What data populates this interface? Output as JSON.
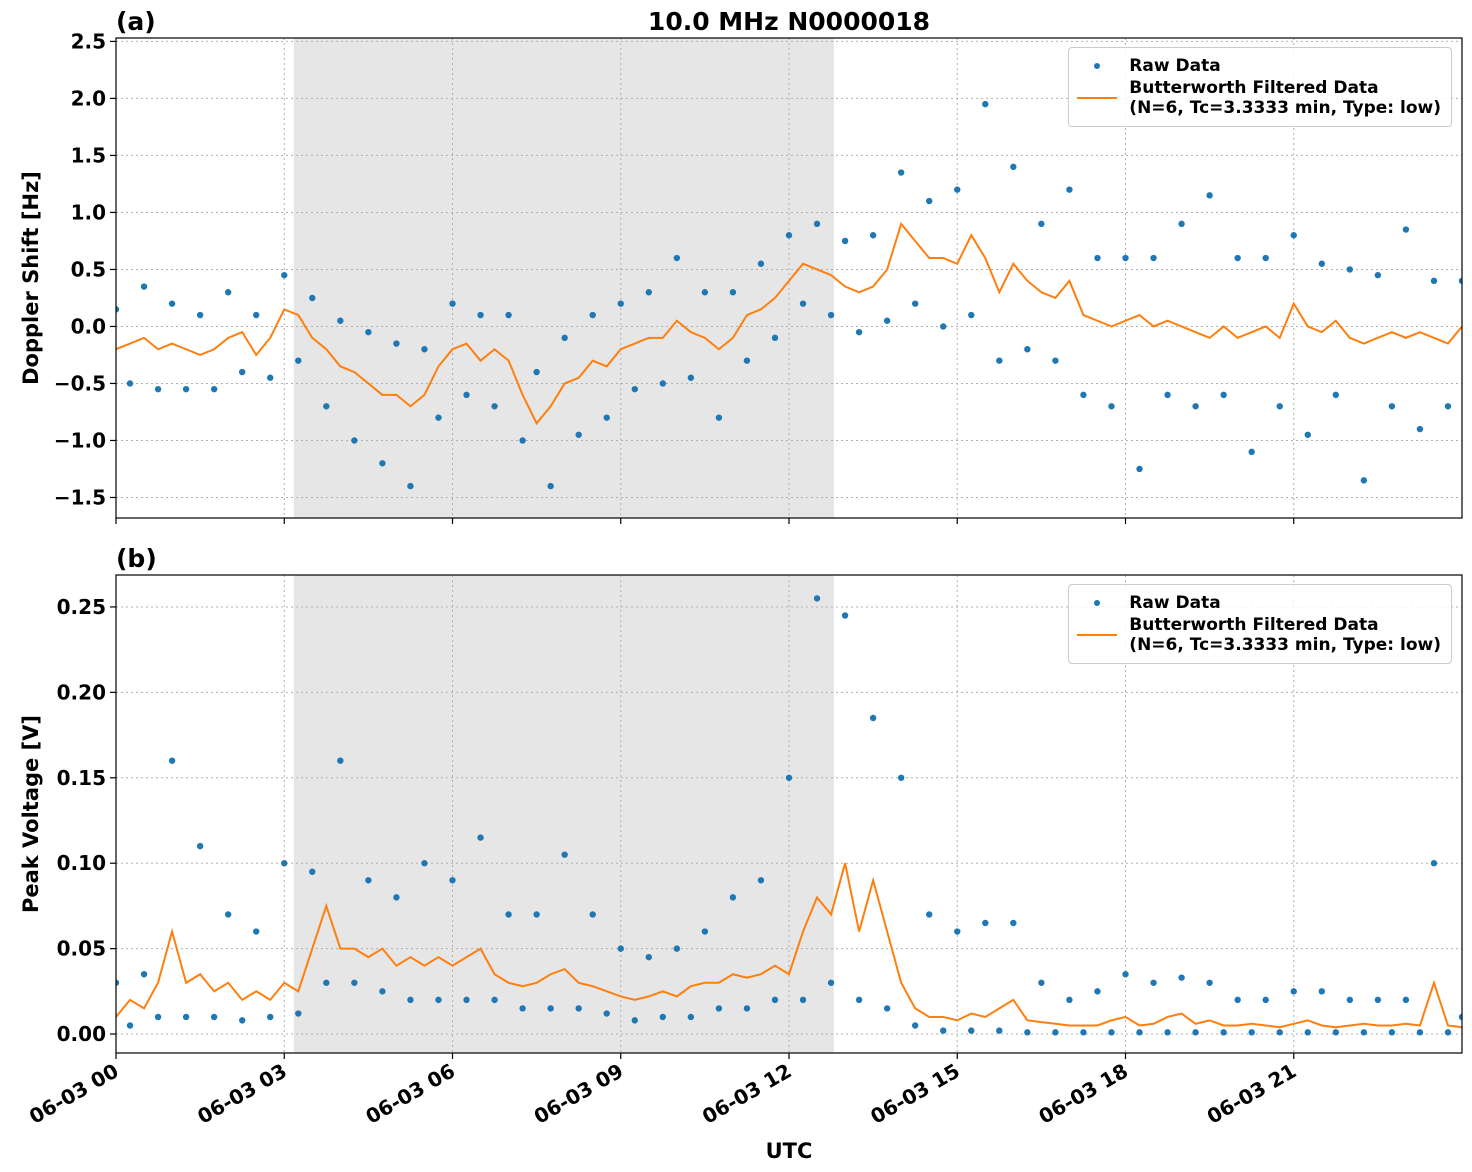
{
  "chart_data": [
    {
      "type": "timeseries",
      "title": "10.0 MHz N0000018",
      "panel_label": "(a)",
      "y_label": "Doppler Shift [Hz]",
      "xlim": [
        0,
        24
      ],
      "shaded_span": [
        3.17,
        12.8
      ],
      "grid": true,
      "legend": "upper right",
      "ylim": [
        -1.68,
        2.53
      ],
      "yticks": [
        {
          "value": -1.5,
          "label": "−1.5"
        },
        {
          "value": -1.0,
          "label": "−1.0"
        },
        {
          "value": -0.5,
          "label": "−0.5"
        },
        {
          "value": 0,
          "label": "0.0"
        },
        0.5,
        {
          "value": 1,
          "label": "1.0"
        },
        1.5,
        {
          "value": 2,
          "label": "2.0"
        },
        2.5
      ],
      "x": [
        0,
        0.25,
        0.5,
        0.75,
        1,
        1.25,
        1.5,
        1.75,
        2,
        2.25,
        2.5,
        2.75,
        3,
        3.25,
        3.5,
        3.75,
        4,
        4.25,
        4.5,
        4.75,
        5,
        5.25,
        5.5,
        5.75,
        6,
        6.25,
        6.5,
        6.75,
        7,
        7.25,
        7.5,
        7.75,
        8,
        8.25,
        8.5,
        8.75,
        9,
        9.25,
        9.5,
        9.75,
        10,
        10.25,
        10.5,
        10.75,
        11,
        11.25,
        11.5,
        11.75,
        12,
        12.25,
        12.5,
        12.75,
        13,
        13.25,
        13.5,
        13.75,
        14,
        14.25,
        14.5,
        14.75,
        15,
        15.25,
        15.5,
        15.75,
        16,
        16.25,
        16.5,
        16.75,
        17,
        17.25,
        17.5,
        17.75,
        18,
        18.25,
        18.5,
        18.75,
        19,
        19.25,
        19.5,
        19.75,
        20,
        20.25,
        20.5,
        20.75,
        21,
        21.25,
        21.5,
        21.75,
        22,
        22.25,
        22.5,
        22.75,
        23,
        23.25,
        23.5,
        23.75,
        24
      ],
      "series": [
        {
          "name": "Raw Data",
          "mode": "markers",
          "color": "#1f77b4",
          "values": [
            0.15,
            -0.5,
            0.35,
            -0.55,
            0.2,
            -0.55,
            0.1,
            -0.55,
            0.3,
            -0.4,
            0.1,
            -0.45,
            0.45,
            -0.3,
            0.25,
            -0.7,
            0.05,
            -1.0,
            -0.05,
            -1.2,
            -0.15,
            -1.4,
            -0.2,
            -0.8,
            0.2,
            -0.6,
            0.1,
            -0.7,
            0.1,
            -1.0,
            -0.4,
            -1.4,
            -0.1,
            -0.95,
            0.1,
            -0.8,
            0.2,
            -0.55,
            0.3,
            -0.5,
            0.6,
            -0.45,
            0.3,
            -0.8,
            0.3,
            -0.3,
            0.55,
            -0.1,
            0.8,
            0.2,
            0.9,
            0.1,
            0.75,
            -0.05,
            0.8,
            0.05,
            1.35,
            0.2,
            1.1,
            0.0,
            1.2,
            0.1,
            1.95,
            -0.3,
            1.4,
            -0.2,
            0.9,
            -0.3,
            1.2,
            -0.6,
            0.6,
            -0.7,
            0.6,
            -1.25,
            0.6,
            -0.6,
            0.9,
            -0.7,
            1.15,
            -0.6,
            0.6,
            -1.1,
            0.6,
            -0.7,
            0.8,
            -0.95,
            0.55,
            -0.6,
            0.5,
            -1.35,
            0.45,
            -0.7,
            0.85,
            -0.9,
            0.4,
            -0.7,
            0.4
          ]
        },
        {
          "name": "Butterworth Filtered Data\n(N=6, Tc=3.3333 min, Type: low)",
          "mode": "lines",
          "color": "#ff7f0e",
          "values": [
            -0.2,
            -0.15,
            -0.1,
            -0.2,
            -0.15,
            -0.2,
            -0.25,
            -0.2,
            -0.1,
            -0.05,
            -0.25,
            -0.1,
            0.15,
            0.1,
            -0.1,
            -0.2,
            -0.35,
            -0.4,
            -0.5,
            -0.6,
            -0.6,
            -0.7,
            -0.6,
            -0.35,
            -0.2,
            -0.15,
            -0.3,
            -0.2,
            -0.3,
            -0.6,
            -0.85,
            -0.7,
            -0.5,
            -0.45,
            -0.3,
            -0.35,
            -0.2,
            -0.15,
            -0.1,
            -0.1,
            0.05,
            -0.05,
            -0.1,
            -0.2,
            -0.1,
            0.1,
            0.15,
            0.25,
            0.4,
            0.55,
            0.5,
            0.45,
            0.35,
            0.3,
            0.35,
            0.5,
            0.9,
            0.75,
            0.6,
            0.6,
            0.55,
            0.8,
            0.6,
            0.3,
            0.55,
            0.4,
            0.3,
            0.25,
            0.4,
            0.1,
            0.05,
            0.0,
            0.05,
            0.1,
            0.0,
            0.05,
            0.0,
            -0.05,
            -0.1,
            0.0,
            -0.1,
            -0.05,
            0.0,
            -0.1,
            0.2,
            0.0,
            -0.05,
            0.05,
            -0.1,
            -0.15,
            -0.1,
            -0.05,
            -0.1,
            -0.05,
            -0.1,
            -0.15,
            0.0
          ]
        }
      ]
    },
    {
      "type": "timeseries",
      "panel_label": "(b)",
      "y_label": "Peak Voltage [V]",
      "x_label": "UTC",
      "xlim": [
        0,
        24
      ],
      "shaded_span": [
        3.17,
        12.8
      ],
      "grid": true,
      "legend": "upper right",
      "xticks": [
        {
          "value": 0,
          "label": "06-03 00"
        },
        {
          "value": 3,
          "label": "06-03 03"
        },
        {
          "value": 6,
          "label": "06-03 06"
        },
        {
          "value": 9,
          "label": "06-03 09"
        },
        {
          "value": 12,
          "label": "06-03 12"
        },
        {
          "value": 15,
          "label": "06-03 15"
        },
        {
          "value": 18,
          "label": "06-03 18"
        },
        {
          "value": 21,
          "label": "06-03 21"
        }
      ],
      "ylim": [
        -0.0111,
        0.2687
      ],
      "yticks": [
        {
          "value": 0,
          "label": "0.00"
        },
        0.05,
        {
          "value": 0.1,
          "label": "0.10"
        },
        0.15,
        {
          "value": 0.2,
          "label": "0.20"
        },
        0.25
      ],
      "x": [
        0,
        0.25,
        0.5,
        0.75,
        1,
        1.25,
        1.5,
        1.75,
        2,
        2.25,
        2.5,
        2.75,
        3,
        3.25,
        3.5,
        3.75,
        4,
        4.25,
        4.5,
        4.75,
        5,
        5.25,
        5.5,
        5.75,
        6,
        6.25,
        6.5,
        6.75,
        7,
        7.25,
        7.5,
        7.75,
        8,
        8.25,
        8.5,
        8.75,
        9,
        9.25,
        9.5,
        9.75,
        10,
        10.25,
        10.5,
        10.75,
        11,
        11.25,
        11.5,
        11.75,
        12,
        12.25,
        12.5,
        12.75,
        13,
        13.25,
        13.5,
        13.75,
        14,
        14.25,
        14.5,
        14.75,
        15,
        15.25,
        15.5,
        15.75,
        16,
        16.25,
        16.5,
        16.75,
        17,
        17.25,
        17.5,
        17.75,
        18,
        18.25,
        18.5,
        18.75,
        19,
        19.25,
        19.5,
        19.75,
        20,
        20.25,
        20.5,
        20.75,
        21,
        21.25,
        21.5,
        21.75,
        22,
        22.25,
        22.5,
        22.75,
        23,
        23.25,
        23.5,
        23.75,
        24
      ],
      "series": [
        {
          "name": "Raw Data",
          "mode": "markers",
          "color": "#1f77b4",
          "values": [
            0.03,
            0.005,
            0.035,
            0.01,
            0.16,
            0.01,
            0.11,
            0.01,
            0.07,
            0.008,
            0.06,
            0.01,
            0.1,
            0.012,
            0.095,
            0.03,
            0.16,
            0.03,
            0.09,
            0.025,
            0.08,
            0.02,
            0.1,
            0.02,
            0.09,
            0.02,
            0.115,
            0.02,
            0.07,
            0.015,
            0.07,
            0.015,
            0.105,
            0.015,
            0.07,
            0.012,
            0.05,
            0.008,
            0.045,
            0.01,
            0.05,
            0.01,
            0.06,
            0.015,
            0.08,
            0.015,
            0.09,
            0.02,
            0.15,
            0.02,
            0.255,
            0.03,
            0.245,
            0.02,
            0.185,
            0.015,
            0.15,
            0.005,
            0.07,
            0.002,
            0.06,
            0.002,
            0.065,
            0.002,
            0.065,
            0.001,
            0.03,
            0.001,
            0.02,
            0.001,
            0.025,
            0.001,
            0.035,
            0.001,
            0.03,
            0.001,
            0.033,
            0.001,
            0.03,
            0.001,
            0.02,
            0.001,
            0.02,
            0.001,
            0.025,
            0.001,
            0.025,
            0.001,
            0.02,
            0.001,
            0.02,
            0.001,
            0.02,
            0.001,
            0.1,
            0.001,
            0.01
          ]
        },
        {
          "name": "Butterworth Filtered Data\n(N=6, Tc=3.3333 min, Type: low)",
          "mode": "lines",
          "color": "#ff7f0e",
          "values": [
            0.01,
            0.02,
            0.015,
            0.03,
            0.06,
            0.03,
            0.035,
            0.025,
            0.03,
            0.02,
            0.025,
            0.02,
            0.03,
            0.025,
            0.05,
            0.075,
            0.05,
            0.05,
            0.045,
            0.05,
            0.04,
            0.045,
            0.04,
            0.045,
            0.04,
            0.045,
            0.05,
            0.035,
            0.03,
            0.028,
            0.03,
            0.035,
            0.038,
            0.03,
            0.028,
            0.025,
            0.022,
            0.02,
            0.022,
            0.025,
            0.022,
            0.028,
            0.03,
            0.03,
            0.035,
            0.033,
            0.035,
            0.04,
            0.035,
            0.06,
            0.08,
            0.07,
            0.1,
            0.06,
            0.09,
            0.06,
            0.03,
            0.015,
            0.01,
            0.01,
            0.008,
            0.012,
            0.01,
            0.015,
            0.02,
            0.008,
            0.007,
            0.006,
            0.005,
            0.005,
            0.005,
            0.008,
            0.01,
            0.005,
            0.006,
            0.01,
            0.012,
            0.006,
            0.008,
            0.005,
            0.005,
            0.006,
            0.005,
            0.004,
            0.006,
            0.008,
            0.005,
            0.004,
            0.005,
            0.006,
            0.005,
            0.005,
            0.006,
            0.005,
            0.03,
            0.005,
            0.004
          ]
        }
      ]
    }
  ]
}
